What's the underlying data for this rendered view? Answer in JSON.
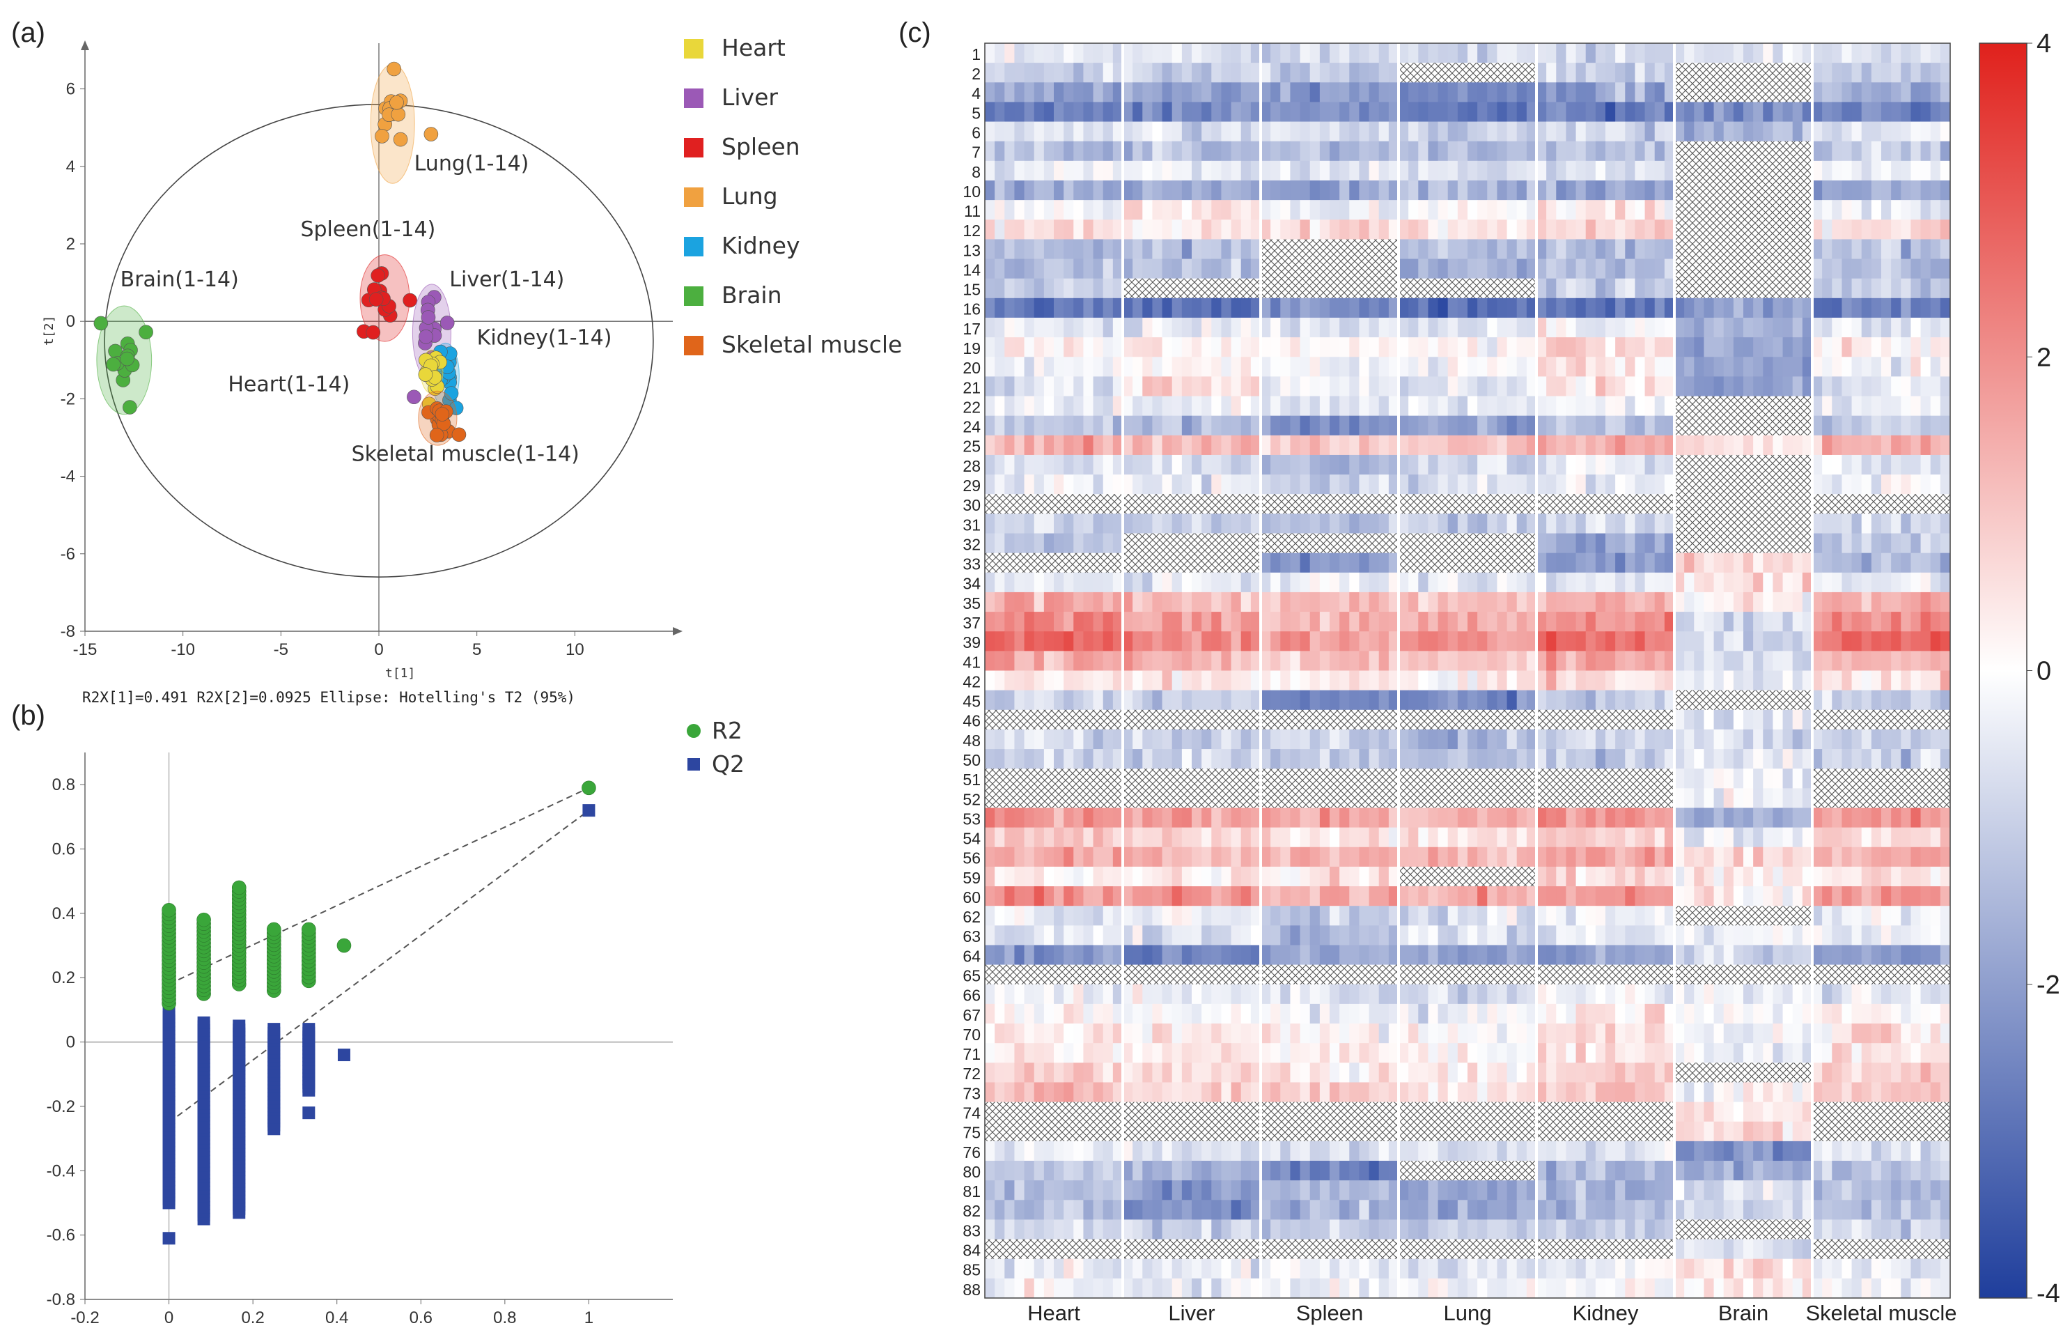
{
  "chart_data": [
    {
      "panel": "(a)",
      "type": "scatter",
      "xlabel": "t[1]",
      "ylabel": "t[2]",
      "xlim": [
        -15,
        15
      ],
      "ylim": [
        -8,
        7
      ],
      "xticks": [
        -15,
        -10,
        -5,
        0,
        5,
        10
      ],
      "yticks": [
        -8,
        -6,
        -4,
        -2,
        0,
        2,
        4,
        6
      ],
      "footer": "R2X[1]=0.491   R2X[2]=0.0925    Ellipse: Hotelling's T2 (95%)",
      "ellipse": {
        "cx": 0,
        "cy": -0.5,
        "rx": 14,
        "ry": 6.1
      },
      "legend": [
        {
          "name": "Heart",
          "color": "#e9d73a"
        },
        {
          "name": "Liver",
          "color": "#9b59b6"
        },
        {
          "name": "Spleen",
          "color": "#e02020"
        },
        {
          "name": "Lung",
          "color": "#f0a140"
        },
        {
          "name": "Kidney",
          "color": "#1ba3e0"
        },
        {
          "name": "Brain",
          "color": "#4caf3f"
        },
        {
          "name": "Skeletal muscle",
          "color": "#e0651a"
        }
      ],
      "groups": [
        {
          "label": "Lung(1-14)",
          "color": "#f0a140",
          "center": [
            0.7,
            5.1
          ],
          "spread": [
            0.8,
            1.1
          ],
          "label_at": [
            1.8,
            3.9
          ]
        },
        {
          "label": "Spleen(1-14)",
          "color": "#e02020",
          "center": [
            0.3,
            0.6
          ],
          "spread": [
            0.9,
            0.8
          ],
          "label_at": [
            -4.0,
            2.2
          ]
        },
        {
          "label": "Liver(1-14)",
          "color": "#9b59b6",
          "center": [
            2.7,
            -0.3
          ],
          "spread": [
            0.7,
            0.9
          ],
          "label_at": [
            3.6,
            0.9
          ]
        },
        {
          "label": "Kidney(1-14)",
          "color": "#1ba3e0",
          "center": [
            3.4,
            -1.4
          ],
          "spread": [
            0.5,
            0.6
          ],
          "label_at": [
            5.0,
            -0.6
          ]
        },
        {
          "label": "Heart(1-14)",
          "color": "#e9d73a",
          "center": [
            2.7,
            -1.3
          ],
          "spread": [
            0.4,
            0.4
          ],
          "label_at": [
            -7.7,
            -1.8
          ]
        },
        {
          "label": "Skeletal muscle(1-14)",
          "color": "#e0651a",
          "center": [
            3.0,
            -2.5
          ],
          "spread": [
            0.7,
            0.5
          ],
          "label_at": [
            -1.4,
            -3.6
          ]
        },
        {
          "label": "Brain(1-14)",
          "color": "#4caf3f",
          "center": [
            -13.0,
            -1.0
          ],
          "spread": [
            1.0,
            1.0
          ],
          "label_at": [
            -13.2,
            0.9
          ]
        }
      ]
    },
    {
      "panel": "(b)",
      "type": "scatter",
      "xlim": [
        -0.2,
        1.2
      ],
      "ylim": [
        -0.8,
        0.9
      ],
      "xticks": [
        -0.2,
        0,
        0.2,
        0.4,
        0.6,
        0.8,
        1
      ],
      "yticks": [
        -0.8,
        -0.6,
        -0.4,
        -0.2,
        0,
        0.2,
        0.4,
        0.6,
        0.8
      ],
      "series": [
        {
          "name": "R2",
          "color": "#3aa63a",
          "marker": "circle",
          "columns": [
            {
              "x": 0.0,
              "ymin": 0.12,
              "ymax": 0.41
            },
            {
              "x": 0.083,
              "ymin": 0.15,
              "ymax": 0.38
            },
            {
              "x": 0.167,
              "ymin": 0.18,
              "ymax": 0.48
            },
            {
              "x": 0.25,
              "ymin": 0.16,
              "ymax": 0.35
            },
            {
              "x": 0.333,
              "ymin": 0.19,
              "ymax": 0.35
            }
          ],
          "points": [
            {
              "x": 0.417,
              "y": 0.3
            },
            {
              "x": 1.0,
              "y": 0.79
            }
          ]
        },
        {
          "name": "Q2",
          "color": "#2d46a0",
          "marker": "square",
          "columns": [
            {
              "x": 0.0,
              "ymin": -0.5,
              "ymax": 0.09
            },
            {
              "x": 0.083,
              "ymin": -0.55,
              "ymax": 0.06
            },
            {
              "x": 0.167,
              "ymin": -0.53,
              "ymax": 0.05
            },
            {
              "x": 0.25,
              "ymin": -0.27,
              "ymax": 0.04
            },
            {
              "x": 0.333,
              "ymin": -0.15,
              "ymax": 0.04
            }
          ],
          "points": [
            {
              "x": 0.0,
              "y": -0.61
            },
            {
              "x": 0.333,
              "y": -0.22
            },
            {
              "x": 0.417,
              "y": -0.04
            },
            {
              "x": 1.0,
              "y": 0.72
            }
          ]
        }
      ],
      "trend_lines": [
        {
          "from": [
            0.0,
            0.18
          ],
          "to": [
            1.0,
            0.79
          ]
        },
        {
          "from": [
            0.0,
            -0.25
          ],
          "to": [
            1.0,
            0.72
          ]
        }
      ]
    },
    {
      "panel": "(c)",
      "type": "heatmap",
      "rows": [
        "1",
        "2",
        "4",
        "5",
        "6",
        "7",
        "8",
        "10",
        "11",
        "12",
        "13",
        "14",
        "15",
        "16",
        "17",
        "19",
        "20",
        "21",
        "22",
        "24",
        "25",
        "28",
        "29",
        "30",
        "31",
        "32",
        "33",
        "34",
        "35",
        "37",
        "39",
        "41",
        "42",
        "45",
        "46",
        "48",
        "50",
        "51",
        "52",
        "53",
        "54",
        "56",
        "59",
        "60",
        "62",
        "63",
        "64",
        "65",
        "66",
        "67",
        "70",
        "71",
        "72",
        "73",
        "74",
        "75",
        "76",
        "80",
        "81",
        "82",
        "83",
        "84",
        "85",
        "88"
      ],
      "columns": [
        "Heart",
        "Liver",
        "Spleen",
        "Lung",
        "Kidney",
        "Brain",
        "Skeletal muscle"
      ],
      "samples_per_column": 14,
      "colorbar": {
        "min": -4,
        "max": 4,
        "ticks": [
          4,
          2,
          0,
          -2,
          -4
        ],
        "colors": {
          "high": "#e0211c",
          "mid": "#ffffff",
          "low": "#1f3e9c"
        }
      },
      "row_profile": {
        "1": [
          -0.6,
          -0.5,
          -0.7,
          -0.6,
          -0.8,
          -0.6,
          -0.6
        ],
        "2": [
          -1.0,
          -1.0,
          -1.2,
          "NA",
          -1.0,
          "NA",
          -1.0
        ],
        "4": [
          -1.8,
          -1.8,
          -1.9,
          -2.4,
          -1.8,
          "NA",
          -1.8
        ],
        "5": [
          -2.6,
          -2.4,
          -2.2,
          -2.8,
          -2.6,
          -2.4,
          -2.5
        ],
        "6": [
          -0.7,
          -0.6,
          -0.8,
          -0.9,
          -0.8,
          -1.4,
          -0.6
        ],
        "7": [
          -1.3,
          -1.2,
          -1.4,
          -1.4,
          -1.3,
          "NA",
          -1.2
        ],
        "8": [
          -0.4,
          -0.5,
          -0.6,
          -0.7,
          -0.6,
          "NA",
          -0.4
        ],
        "10": [
          -1.9,
          -1.7,
          -1.8,
          -1.6,
          -1.9,
          "NA",
          -1.8
        ],
        "11": [
          -0.3,
          0.6,
          -0.4,
          -0.2,
          0.3,
          "NA",
          -0.4
        ],
        "12": [
          0.7,
          0.4,
          0.5,
          0.5,
          0.9,
          "NA",
          0.6
        ],
        "13": [
          -1.4,
          -1.2,
          "NA",
          -1.3,
          -1.3,
          "NA",
          -1.2
        ],
        "14": [
          -1.5,
          -1.3,
          "NA",
          -1.6,
          -1.4,
          "NA",
          -1.3
        ],
        "15": [
          -1.1,
          "NA",
          "NA",
          "NA",
          -1.2,
          "NA",
          -1.0
        ],
        "16": [
          -2.8,
          -3.0,
          -2.2,
          -3.0,
          -3.0,
          -1.8,
          -2.6
        ],
        "17": [
          -0.5,
          -0.4,
          -0.5,
          -0.4,
          -0.2,
          -1.6,
          -0.5
        ],
        "19": [
          0.2,
          0.4,
          0.2,
          0.1,
          0.6,
          -1.8,
          0.1
        ],
        "20": [
          -0.3,
          0.1,
          -0.3,
          -0.2,
          0.3,
          -1.9,
          -0.3
        ],
        "21": [
          -0.6,
          0.6,
          -0.4,
          -0.5,
          0.5,
          -2.1,
          -0.4
        ],
        "22": [
          -0.4,
          -0.3,
          -0.6,
          -0.6,
          -0.2,
          "NA",
          -0.4
        ],
        "24": [
          -1.2,
          -1.3,
          -2.3,
          -2.0,
          -1.4,
          "NA",
          -1.1
        ],
        "25": [
          1.4,
          1.2,
          1.1,
          1.1,
          1.4,
          0.4,
          1.5
        ],
        "28": [
          -0.6,
          -0.7,
          -1.5,
          -0.8,
          -0.5,
          "NA",
          -0.6
        ],
        "29": [
          -0.3,
          -0.4,
          -0.9,
          -0.5,
          -0.3,
          "NA",
          -0.3
        ],
        "30": [
          "NA",
          "NA",
          "NA",
          "NA",
          "NA",
          "NA",
          "NA"
        ],
        "31": [
          -0.9,
          -0.9,
          -1.3,
          -0.9,
          -0.8,
          "NA",
          -0.8
        ],
        "32": [
          -1.2,
          "NA",
          "NA",
          "NA",
          -1.8,
          "NA",
          -1.1
        ],
        "33": [
          "NA",
          "NA",
          -2.0,
          "NA",
          -2.2,
          0.4,
          -1.4
        ],
        "34": [
          -0.4,
          -0.5,
          -0.3,
          -0.4,
          -0.5,
          0.6,
          -0.3
        ],
        "35": [
          1.6,
          1.2,
          1.0,
          1.1,
          1.5,
          0.2,
          1.4
        ],
        "37": [
          2.2,
          1.7,
          1.4,
          1.5,
          2.0,
          -0.8,
          2.0
        ],
        "39": [
          2.8,
          2.2,
          1.8,
          2.0,
          2.6,
          -1.0,
          2.7
        ],
        "41": [
          1.6,
          1.2,
          1.0,
          1.2,
          1.6,
          -0.6,
          1.4
        ],
        "42": [
          0.6,
          0.4,
          0.3,
          0.3,
          0.7,
          -0.4,
          0.5
        ],
        "45": [
          -1.0,
          -1.0,
          -2.6,
          -2.4,
          -1.0,
          "NA",
          -1.0
        ],
        "46": [
          "NA",
          "NA",
          "NA",
          "NA",
          "NA",
          -0.5,
          "NA"
        ],
        "48": [
          -0.8,
          -0.9,
          -1.0,
          -1.6,
          -0.9,
          -0.6,
          -0.8
        ],
        "50": [
          -1.1,
          -1.0,
          -1.2,
          -1.3,
          -1.0,
          -0.5,
          -1.0
        ],
        "51": [
          "NA",
          "NA",
          "NA",
          "NA",
          "NA",
          -0.3,
          "NA"
        ],
        "52": [
          "NA",
          "NA",
          "NA",
          "NA",
          "NA",
          -0.2,
          "NA"
        ],
        "53": [
          1.8,
          1.6,
          1.6,
          1.4,
          1.9,
          -1.6,
          1.8
        ],
        "54": [
          0.8,
          0.7,
          0.6,
          0.5,
          0.9,
          -0.4,
          0.8
        ],
        "56": [
          1.6,
          1.4,
          1.3,
          1.1,
          1.6,
          0.5,
          1.4
        ],
        "59": [
          0.5,
          0.4,
          0.4,
          "NA",
          0.6,
          0.3,
          0.4
        ],
        "60": [
          2.0,
          1.6,
          1.5,
          1.4,
          2.0,
          0.2,
          1.8
        ],
        "62": [
          -0.3,
          -0.4,
          -0.9,
          -0.6,
          -0.3,
          "NA",
          -0.3
        ],
        "63": [
          -0.5,
          -0.6,
          -1.4,
          -0.8,
          -0.5,
          -0.3,
          -0.5
        ],
        "64": [
          -2.2,
          -2.6,
          -1.8,
          -1.9,
          -2.0,
          -1.0,
          -2.1
        ],
        "65": [
          "NA",
          "NA",
          "NA",
          "NA",
          "NA",
          "NA",
          "NA"
        ],
        "66": [
          -0.3,
          -0.4,
          -0.5,
          -0.8,
          -0.2,
          -0.3,
          -0.3
        ],
        "67": [
          0.1,
          -0.1,
          -0.2,
          -0.3,
          0.3,
          -0.2,
          0.2
        ],
        "70": [
          0.5,
          0.3,
          0.2,
          0.1,
          0.6,
          -0.3,
          0.5
        ],
        "71": [
          0.4,
          0.3,
          0.1,
          0.0,
          0.5,
          -0.2,
          0.4
        ],
        "72": [
          0.8,
          0.5,
          0.4,
          0.3,
          0.9,
          "NA",
          0.8
        ],
        "73": [
          1.2,
          0.9,
          0.8,
          0.6,
          1.2,
          0.1,
          1.2
        ],
        "74": [
          "NA",
          "NA",
          "NA",
          "NA",
          "NA",
          0.5,
          "NA"
        ],
        "75": [
          "NA",
          "NA",
          "NA",
          "NA",
          "NA",
          0.6,
          "NA"
        ],
        "76": [
          -0.4,
          -0.6,
          -0.7,
          -0.6,
          -0.5,
          -2.4,
          -0.4
        ],
        "80": [
          -1.2,
          -1.8,
          -2.6,
          "NA",
          -1.4,
          -1.6,
          -1.2
        ],
        "81": [
          -1.3,
          -2.0,
          -1.4,
          -2.0,
          -1.5,
          -0.6,
          -1.4
        ],
        "82": [
          -1.4,
          -2.2,
          -1.6,
          -1.8,
          -1.5,
          -0.8,
          -1.4
        ],
        "83": [
          -0.8,
          -1.0,
          -1.0,
          -1.0,
          -0.9,
          "NA",
          -0.8
        ],
        "84": [
          "NA",
          "NA",
          "NA",
          "NA",
          "NA",
          -0.5,
          "NA"
        ],
        "85": [
          -0.3,
          -0.4,
          -0.4,
          -0.6,
          -0.4,
          0.7,
          -0.3
        ],
        "88": [
          -0.2,
          -0.3,
          -0.3,
          -0.4,
          -0.2,
          0.4,
          -0.2
        ]
      },
      "missing_pattern": "cross-hatch"
    }
  ]
}
